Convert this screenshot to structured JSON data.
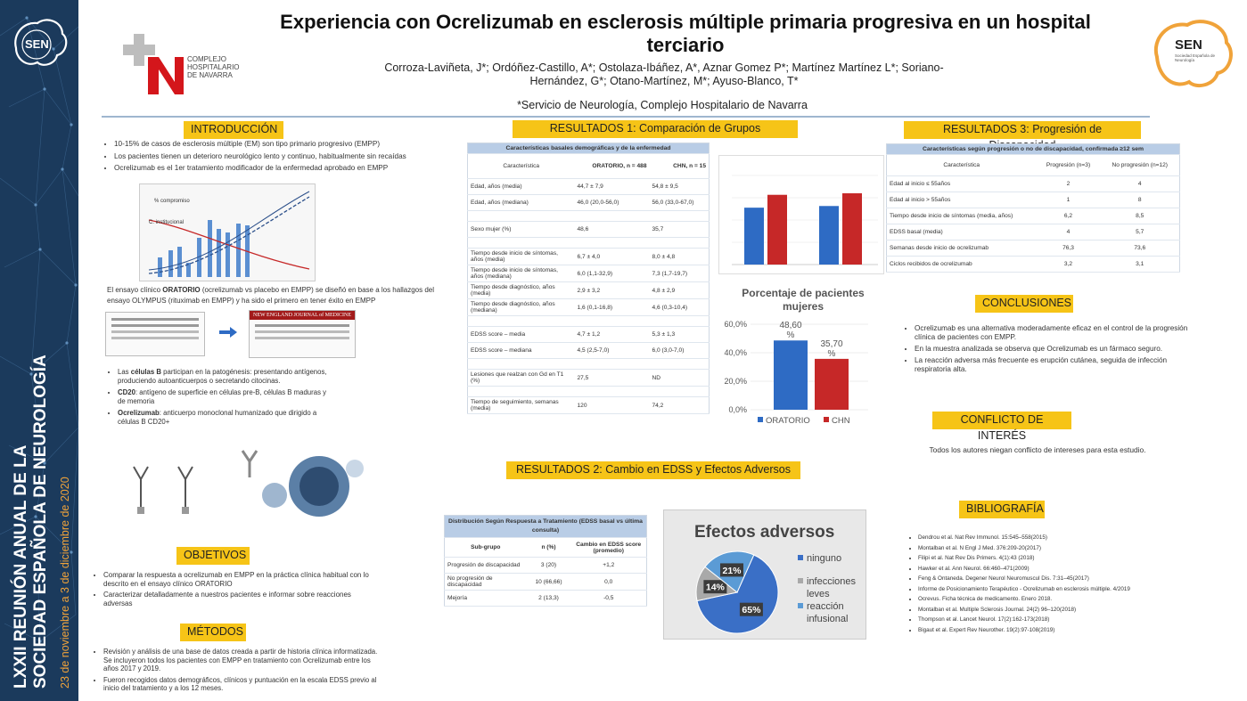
{
  "sidebar": {
    "line1": "LXXII REUNIÓN ANUAL DE LA",
    "line2": "SOCIEDAD ESPAÑOLA DE NEUROLOGÍA",
    "dates": "23 de noviembre a 3 de diciembre de 2020",
    "logo": "SEN"
  },
  "header": {
    "title": "Experiencia con Ocrelizumab en esclerosis múltiple primaria progresiva en un hospital terciario",
    "authors": "Corroza-Laviñeta, J*; Ordóñez-Castillo, A*; Ostolaza-Ibáñez, A*, Aznar Gomez P*; Martínez Martínez L*; Soriano-Hernández, G*; Otano-Martínez, M*; Ayuso-Blanco, T*",
    "affiliation": "*Servicio de Neurología, Complejo Hospitalario de Navarra",
    "hospital_logo": [
      "COMPLEJO",
      "HOSPITALARIO",
      "DE NAVARRA"
    ],
    "sen_logo": "SEN",
    "sen_sub": "Sociedad Española de Neurología"
  },
  "intro": {
    "title": "INTRODUCCIÓN",
    "bullets": [
      "10-15% de casos de esclerosis múltiple (EM) son tipo primario progresivo (EMPP)",
      "Los pacientes tienen un deterioro neurológico lento y continuo, habitualmente sin recaídas",
      "Ocrelizumab es el 1er tratamiento modificador de la enfermedad aprobado en EMPP"
    ],
    "oratorio_pre": "El ensayo clínico ",
    "oratorio_b": "ORATORIO",
    "oratorio_post": " (ocrelizumab vs placebo en EMPP) se diseñó en base a los hallazgos del ensayo OLYMPUS (rituximab en EMPP) y ha sido el primero en tener éxito en EMPP",
    "journal": "NEW ENGLAND JOURNAL of MEDICINE",
    "fig_labels": [
      "% compromiso",
      "C. institucional"
    ],
    "b1_pre": "Las ",
    "b1_b": "células B",
    "b1_post": " participan en la patogénesis: presentando antígenos, produciendo autoanticuerpos o secretando citocinas.",
    "b2_b": "CD20",
    "b2_post": ": antígeno de superficie en células pre-B, células B maduras y de memoria",
    "b3_b": "Ocrelizumab",
    "b3_post": ": anticuerpo monoclonal humanizado que dirigido a células B CD20+"
  },
  "objetivos": {
    "title": "OBJETIVOS",
    "bullets": [
      "Comparar la respuesta a ocrelizumab en EMPP en la práctica clínica habitual con lo descrito en el ensayo clínico ORATORIO",
      "Caracterizar detalladamente a nuestros pacientes e informar sobre reacciones adversas"
    ]
  },
  "metodos": {
    "title": "MÉTODOS",
    "bullets": [
      "Revisión y análisis de una base de datos creada a partir de historia clínica informatizada. Se incluyeron todos los pacientes con EMPP en tratamiento con Ocrelizumab entre los años 2017 y 2019.",
      "Fueron recogidos datos demográficos, clínicos y puntuación en la escala EDSS previo al inicio del tratamiento y a los 12 meses."
    ]
  },
  "res1": {
    "title": "RESULTADOS 1: Comparación de Grupos",
    "table_title": "Características basales demográficas y de la enfermedad",
    "headers": [
      "Característica",
      "ORATORIO, n = 488",
      "CHN, n = 15"
    ],
    "rows": [
      [
        "Edad, años (media)",
        "44,7 ± 7,9",
        "54,8 ± 9,5"
      ],
      [
        "Edad, años (mediana)",
        "46,0 (20,0-56,0)",
        "56,0 (33,0-67,0)"
      ],
      [
        "",
        "",
        ""
      ],
      [
        "Sexo mujer (%)",
        "48,6",
        "35,7"
      ],
      [
        "",
        "",
        ""
      ],
      [
        "Tiempo desde inicio de síntomas, años (media)",
        "6,7 ± 4,0",
        "8,0 ± 4,8"
      ],
      [
        "Tiempo desde inicio de síntomas, años (mediana)",
        "6,0 (1,1-32,9)",
        "7,3 (1,7-19,7)"
      ],
      [
        "Tiempo desde diagnóstico, años (media)",
        "2,9 ± 3,2",
        "4,8 ± 2,9"
      ],
      [
        "Tiempo desde diagnóstico, años (mediana)",
        "1,6 (0,1-16,8)",
        "4,6 (0,3-10,4)"
      ],
      [
        "",
        "",
        ""
      ],
      [
        "EDSS score – media",
        "4,7 ± 1,2",
        "5,3 ± 1,3"
      ],
      [
        "EDSS score – mediana",
        "4,5 (2,5-7,0)",
        "6,0 (3,0-7,0)"
      ],
      [
        "",
        "",
        ""
      ],
      [
        "Lesiones que realzan con Gd en T1 (%)",
        "27,5",
        "ND"
      ],
      [
        "",
        "",
        ""
      ],
      [
        "Tiempo de seguimiento, semanas (media)",
        "120",
        "74,2"
      ]
    ]
  },
  "chart_data": [
    {
      "type": "bar",
      "title": "",
      "categories": [
        "",
        ""
      ],
      "series": [
        {
          "name": "",
          "values": [
            44.7,
            46.0
          ],
          "color": "#2e6bc4"
        },
        {
          "name": "",
          "values": [
            54.8,
            56.0
          ],
          "color": "#c62828"
        }
      ]
    },
    {
      "type": "bar",
      "title": "Porcentaje de pacientes mujeres",
      "categories": [
        "ORATORIO",
        "CHN"
      ],
      "values": [
        48.6,
        35.7
      ],
      "value_labels": [
        "48,60 %",
        "35,70 %"
      ],
      "ylim": [
        0,
        60
      ],
      "yticks": [
        "0,0%",
        "20,0%",
        "40,0%",
        "60,0%"
      ],
      "legend": [
        "ORATORIO",
        "CHN"
      ],
      "colors": [
        "#2e6bc4",
        "#c62828"
      ]
    },
    {
      "type": "pie",
      "title": "Efectos adversos",
      "labels": [
        "ninguno",
        "infecciones leves",
        "reacción infusional"
      ],
      "values": [
        65,
        14,
        21
      ],
      "value_labels": [
        "65%",
        "14%",
        "21%"
      ],
      "colors": [
        "#3a6fc6",
        "#a9a9a9",
        "#5b9bd5"
      ]
    }
  ],
  "res2": {
    "title": "RESULTADOS 2: Cambio en EDSS y Efectos Adversos",
    "table_title": "Distribución Según Respuesta a Tratamiento (EDSS basal vs última consulta)",
    "headers": [
      "Sub-grupo",
      "n (%)",
      "Cambio en EDSS score (promedio)"
    ],
    "rows": [
      [
        "Progresión de discapacidad",
        "3 (20)",
        "+1,2"
      ],
      [
        "No progresión de discapacidad",
        "10 (66,66)",
        "0,0"
      ],
      [
        "Mejoría",
        "2 (13,3)",
        "-0,5"
      ]
    ]
  },
  "res3": {
    "title": "RESULTADOS 3: Progresión de Discapacidad",
    "table_title": "Características según progresión o no de discapacidad, confirmada ≥12 sem",
    "headers": [
      "Característica",
      "Progresión (n=3)",
      "No progresión (n=12)"
    ],
    "rows": [
      [
        "Edad al inicio ≤ 55años",
        "2",
        "4"
      ],
      [
        "Edad al inicio > 55años",
        "1",
        "8"
      ],
      [
        "Tiempo desde inicio de síntomas (media, años)",
        "6,2",
        "8,5"
      ],
      [
        "EDSS basal (media)",
        "4",
        "5,7"
      ],
      [
        "Semanas desde inicio de ocrelizumab",
        "76,3",
        "73,6"
      ],
      [
        "Ciclos recibidos de ocrelizumab",
        "3,2",
        "3,1"
      ]
    ]
  },
  "conclusiones": {
    "title": "CONCLUSIONES",
    "bullets": [
      "Ocrelizumab es una alternativa moderadamente eficaz en el control de la progresión clínica de pacientes con EMPP.",
      "En la muestra analizada se observa que Ocrelizumab es un fármaco seguro.",
      "La reacción adversa más frecuente es erupción cutánea, seguida de infección respiratoria alta."
    ]
  },
  "conflicto": {
    "title": "CONFLICTO DE INTERÉS",
    "text": "Todos los autores niegan conflicto de intereses para esta estudio."
  },
  "bibliografia": {
    "title": "BIBLIOGRAFÍA",
    "items": [
      "Dendrou et al. Nat Rev Immunol. 15:545–558(2015)",
      "Montalban et al. N Engl J Med. 376:209-20(2017)",
      "Filipi et al. Nat Rev Dis Primers. 4(1):43 (2018)",
      "Hawker et al. Ann Neurol. 66:460–471(2009)",
      "Feng & Ontaneda. Degener Neurol Neuromuscul Dis. 7:31–45(2017)",
      "Informe de Posicionamiento Terapéutico - Ocrelizumab en esclerosis múltiple. 4/2019",
      "Ocrevus. Ficha técnica de medicamento. Enero 2018.",
      "Montalban et al. Multiple Sclerosis Journal. 24(2) 96–120(2018)",
      "Thompson et al. Lancet Neurol. 17(2):162-173(2018)",
      "Bigaut et al. Expert Rev Neurother. 19(2):97-108(2019)"
    ]
  }
}
